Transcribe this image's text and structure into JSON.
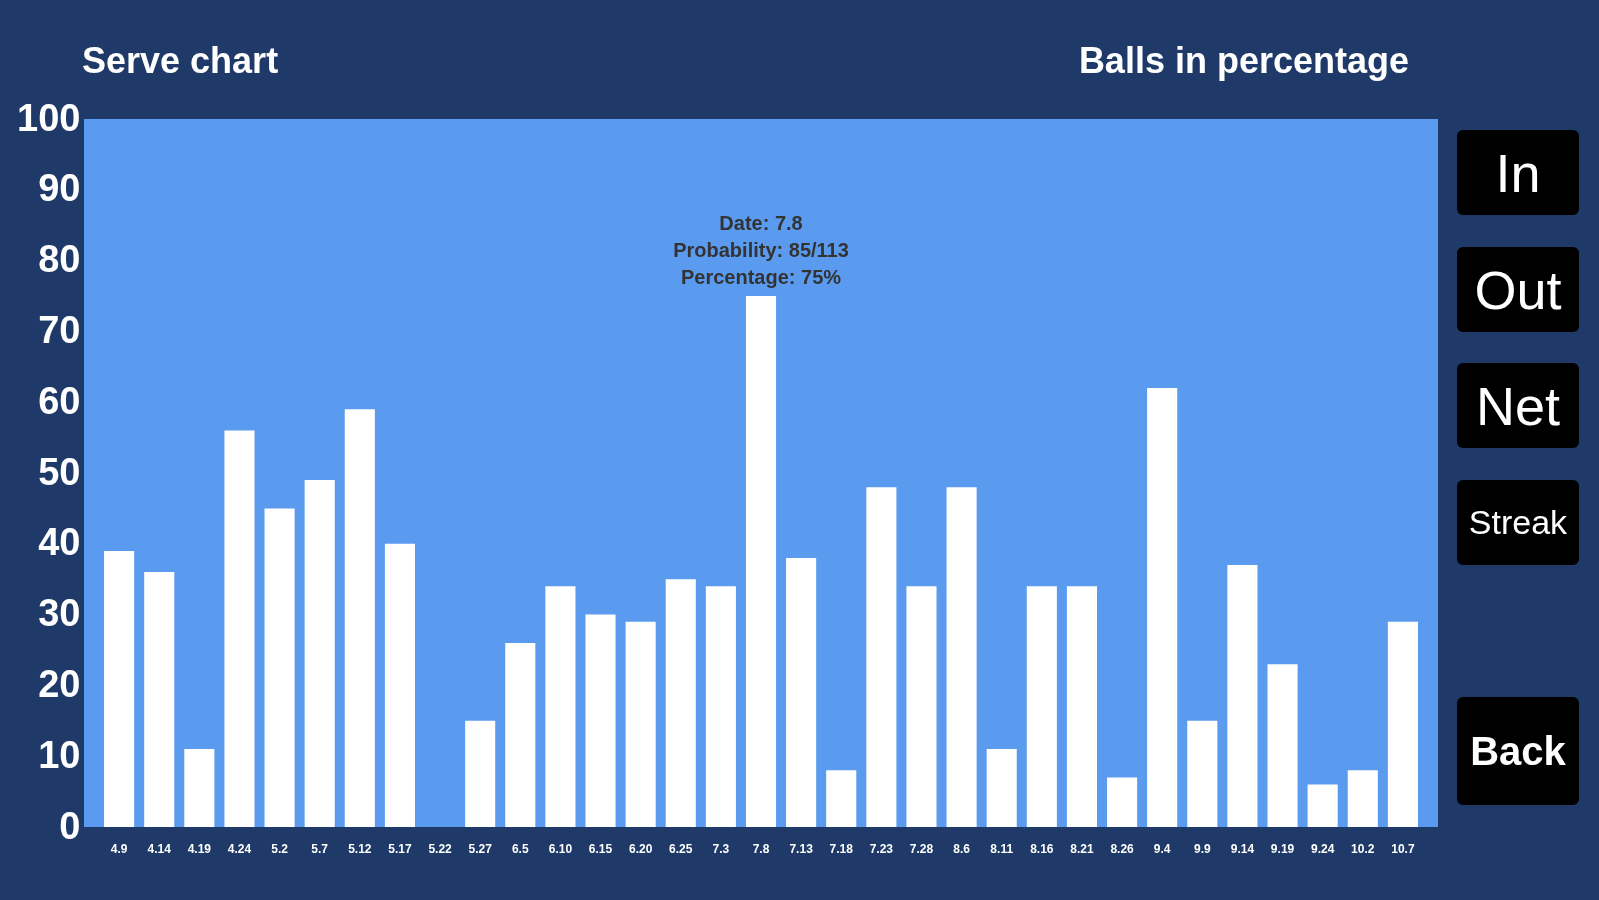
{
  "chart_data": {
    "type": "bar",
    "title": "Serve chart",
    "subtitle": "Balls in percentage",
    "categories": [
      "4.9",
      "4.14",
      "4.19",
      "4.24",
      "5.2",
      "5.7",
      "5.12",
      "5.17",
      "5.22",
      "5.27",
      "6.5",
      "6.10",
      "6.15",
      "6.20",
      "6.25",
      "7.3",
      "7.8",
      "7.13",
      "7.18",
      "7.23",
      "7.28",
      "8.6",
      "8.11",
      "8.16",
      "8.21",
      "8.26",
      "9.4",
      "9.9",
      "9.14",
      "9.19",
      "9.24",
      "10.2",
      "10.7"
    ],
    "values": [
      39,
      36,
      11,
      56,
      45,
      49,
      59,
      40,
      0,
      15,
      26,
      34,
      30,
      29,
      35,
      34,
      75,
      38,
      8,
      48,
      34,
      48,
      11,
      34,
      34,
      7,
      62,
      15,
      37,
      23,
      6,
      8,
      29
    ],
    "color": "#ffffff",
    "ylim": [
      0,
      100
    ],
    "yticks": [
      0,
      10,
      20,
      30,
      40,
      50,
      60,
      70,
      80,
      90,
      100
    ],
    "grid": false,
    "annotations": [
      {
        "text": "Date: 7.8\nProbability: 85/113\nPercentage: 75%",
        "x": "7.8",
        "y": 75
      },
      "In",
      "Out",
      "Net",
      "Streak",
      "Back"
    ]
  }
}
